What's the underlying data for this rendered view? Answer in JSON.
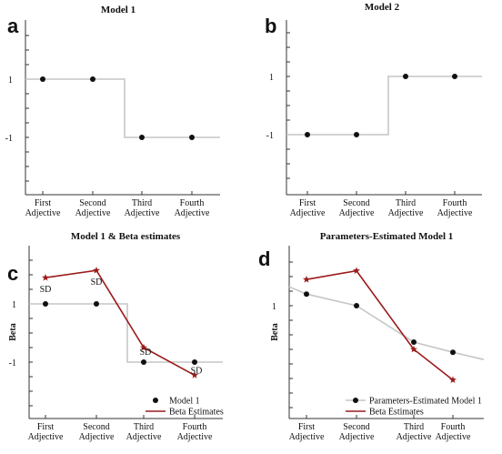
{
  "colors": {
    "step": "#c6c6c6",
    "beta": "#9b1b1b",
    "point": "#111111",
    "axis": "#333333",
    "fitted": "#c6c6c6"
  },
  "chart_data": [
    {
      "panel": "a",
      "type": "line",
      "title": "Model 1",
      "categories": [
        "First Adjective",
        "Second Adjective",
        "Third Adjective",
        "Fourth Adjective"
      ],
      "yticks": [
        {
          "value": 1,
          "label": "1"
        },
        {
          "value": -1,
          "label": "-1"
        }
      ],
      "ylabel": "",
      "ylim": [
        -3,
        3
      ],
      "series": [
        {
          "style": "step",
          "values": [
            1,
            1,
            -1,
            -1
          ]
        },
        {
          "style": "points",
          "values": [
            1,
            1,
            -1,
            -1
          ]
        }
      ]
    },
    {
      "panel": "b",
      "type": "line",
      "title": "Model 2",
      "categories": [
        "First Adjective",
        "Second Adjective",
        "Third Adjective",
        "Fourth Adjective"
      ],
      "yticks": [
        {
          "value": 1,
          "label": "1"
        },
        {
          "value": -1,
          "label": "-1"
        }
      ],
      "ylabel": "",
      "ylim": [
        -3,
        3
      ],
      "series": [
        {
          "style": "step",
          "values": [
            -1,
            -1,
            1,
            1
          ]
        },
        {
          "style": "points",
          "values": [
            -1,
            -1,
            1,
            1
          ]
        }
      ]
    },
    {
      "panel": "c",
      "type": "line",
      "title": "Model 1 & Beta estimates",
      "categories": [
        "First Adjective",
        "Second Adjective",
        "Third Adjective",
        "Fourth Adjective"
      ],
      "yticks": [
        {
          "value": 1,
          "label": "1"
        },
        {
          "value": -1,
          "label": "-1"
        }
      ],
      "ylabel": "Beta",
      "ylim": [
        -3,
        3
      ],
      "annotations": [
        "SD",
        "SD",
        "SD",
        "SD"
      ],
      "legend": {
        "position": "bottom-right"
      },
      "series": [
        {
          "name": "Model 1",
          "style": "step-points",
          "values": [
            1,
            1,
            -1,
            -1
          ]
        },
        {
          "name": "Beta Estimates",
          "style": "star-line",
          "values": [
            1.9,
            2.15,
            -0.5,
            -1.45
          ]
        }
      ]
    },
    {
      "panel": "d",
      "type": "line",
      "title": "Parameters-Estimated Model 1",
      "categories": [
        "First Adjective",
        "Second Adjective",
        "Third Adjective",
        "Fourth Adjective"
      ],
      "yticks": [
        {
          "value": 1,
          "label": "1"
        }
      ],
      "ylabel": "Beta",
      "ylim": [
        -3,
        3
      ],
      "legend": {
        "position": "bottom-right"
      },
      "series": [
        {
          "name": "Parameters-Estimated Model 1",
          "style": "fitted-points",
          "values": [
            1.4,
            1.0,
            -0.25,
            -0.6
          ],
          "ends": [
            1.65,
            -0.85
          ]
        },
        {
          "name": "Beta Estimates",
          "style": "star-line",
          "values": [
            1.9,
            2.2,
            -0.5,
            -1.55
          ]
        }
      ]
    }
  ]
}
